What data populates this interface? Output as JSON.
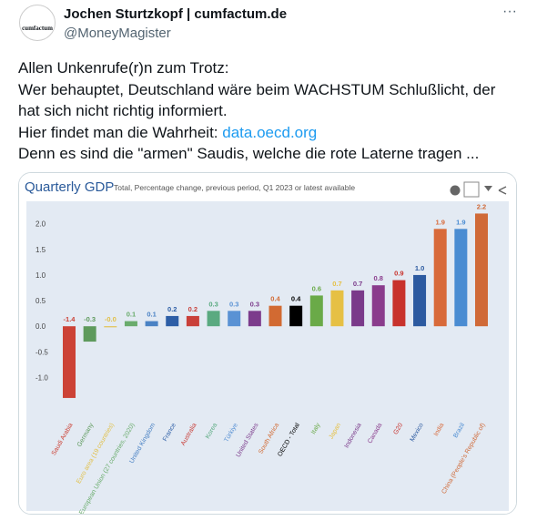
{
  "tweet": {
    "avatar": "cumfactum",
    "name": "Jochen Sturtzkopf | cumfactum.de",
    "handle": "@MoneyMagister",
    "lines": [
      "Allen Unkenrufe(r)n zum Trotz:",
      "Wer behauptet, Deutschland wäre beim WACHSTUM Schlußlicht, der hat sich nicht richtig informiert.",
      "Hier findet man die Wahrheit:",
      "Denn es sind die \"armen\" Saudis, welche die rote Laterne tragen ..."
    ],
    "link": "data.oecd.org"
  },
  "chart_data": {
    "type": "bar",
    "title": "Quarterly GDP",
    "subtitle": "Total, Percentage change, previous period, Q1 2023 or latest available",
    "categories": [
      "Saudi Arabia",
      "Germany",
      "Euro area (19 countries)",
      "European Union (27 countries, 2020)",
      "United Kingdom",
      "France",
      "Australia",
      "Korea",
      "Türkiye",
      "United States",
      "South Africa",
      "OECD - Total",
      "Italy",
      "Japan",
      "Indonesia",
      "Canada",
      "G20",
      "Mexico",
      "India",
      "Brazil",
      "China (People's Republic of)"
    ],
    "values": [
      -1.4,
      -0.3,
      -0.02,
      0.1,
      0.1,
      0.2,
      0.2,
      0.3,
      0.3,
      0.3,
      0.4,
      0.4,
      0.6,
      0.7,
      0.7,
      0.8,
      0.9,
      1.0,
      1.9,
      1.9,
      2.2
    ],
    "value_labels": [
      "-1.4",
      "-0.3",
      "-0.0",
      "0.1",
      "0.1",
      "0.2",
      "0.2",
      "0.3",
      "0.3",
      "0.3",
      "0.4",
      "0.4",
      "0.6",
      "0.7",
      "0.7",
      "0.8",
      "0.9",
      "1.0",
      "1.9",
      "1.9",
      "2.2"
    ],
    "colors": [
      "#cc4236",
      "#5e9a5c",
      "#e2c048",
      "#6aac6c",
      "#4a82c4",
      "#2d5ea6",
      "#c9403a",
      "#5aaa80",
      "#5a92d4",
      "#7c3c8c",
      "#d26a32",
      "#000000",
      "#6aaa48",
      "#e6c044",
      "#7a3a8a",
      "#8a3c8c",
      "#c8322c",
      "#2c5aa0",
      "#d86a3a",
      "#4a8cd2",
      "#d06a38"
    ],
    "ylim": [
      -1.65,
      2.35
    ],
    "yticks": [
      {
        "value": 2,
        "label": "2.0"
      },
      {
        "value": 1.5,
        "label": "1.5"
      },
      {
        "value": 1,
        "label": "1.0"
      },
      {
        "value": 0.5,
        "label": "0.5"
      },
      {
        "value": 0,
        "label": "0.0"
      },
      {
        "value": -0.5,
        "label": "-0.5"
      },
      {
        "value": -1,
        "label": "-1.0"
      }
    ],
    "grid": false
  }
}
